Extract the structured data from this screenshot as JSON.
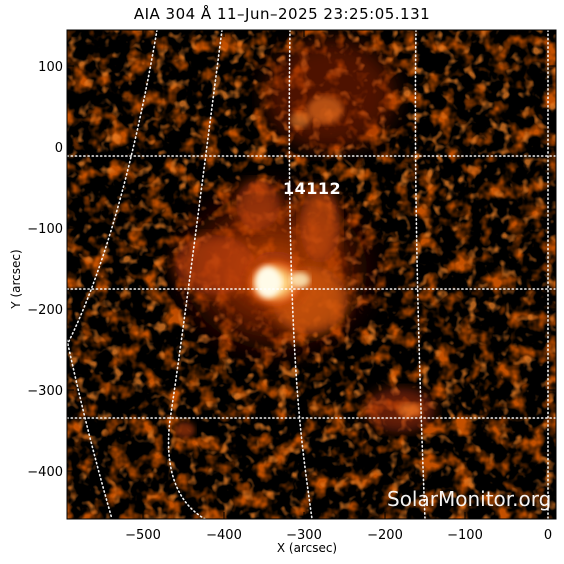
{
  "title": "AIA 304 Å 11–Jun–2025 23:25:05.131",
  "xaxis": {
    "label": "X (arcsec)",
    "ticks": [
      "−500",
      "−400",
      "−300",
      "−200",
      "−100",
      "0"
    ]
  },
  "yaxis": {
    "label": "Y (arcsec)",
    "ticks": [
      "100",
      "0",
      "−100",
      "−200",
      "−300",
      "−400"
    ]
  },
  "region": {
    "number": "14112"
  },
  "watermark": "SolarMonitor.org",
  "colors": {
    "background": "#000000",
    "dim": "#6b1400",
    "mid": "#c23a08",
    "bright": "#ff8a2a",
    "core": "#fff3c8"
  }
}
